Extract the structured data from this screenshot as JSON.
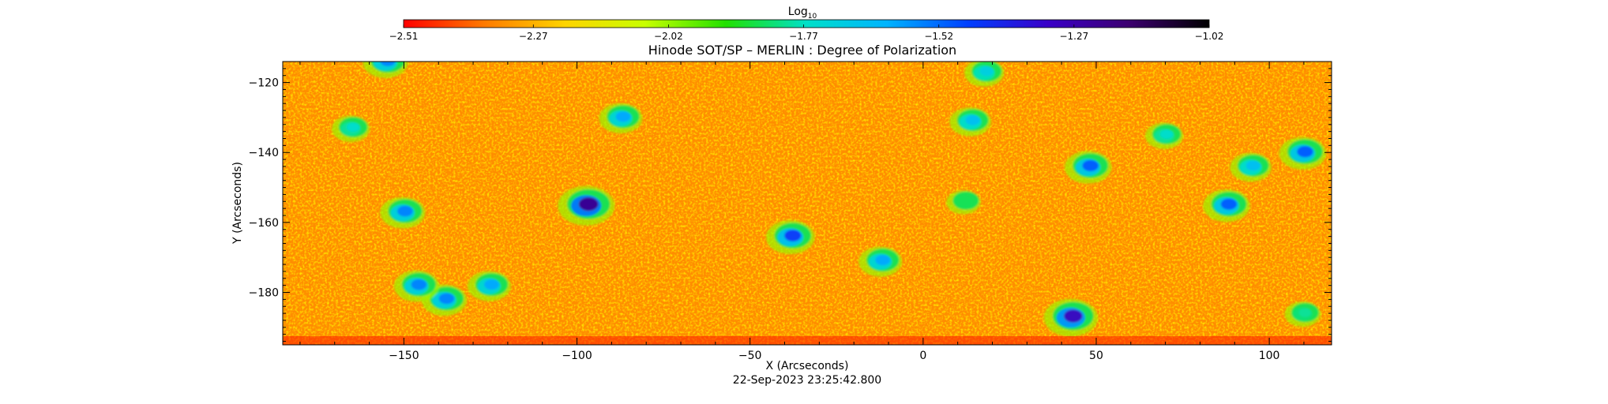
{
  "chart_data": {
    "type": "heatmap",
    "title": "Hinode SOT/SP – MERLIN : Degree of Polarization",
    "xlabel": "X (Arcseconds)",
    "ylabel": "Y (Arcseconds)",
    "timestamp": "22-Sep-2023 23:25:42.800",
    "xlim": [
      -185,
      118
    ],
    "ylim": [
      -195,
      -114
    ],
    "x_ticks": [
      -150,
      -100,
      -50,
      0,
      50,
      100
    ],
    "y_ticks": [
      -120,
      -140,
      -160,
      -180
    ],
    "x_tick_labels": [
      "−150",
      "−100",
      "−50",
      "0",
      "50",
      "100"
    ],
    "y_tick_labels": [
      "−120",
      "−140",
      "−160",
      "−180"
    ],
    "colorbar": {
      "label_base": "Log",
      "label_sub": "10",
      "range": [
        -2.51,
        -1.02
      ],
      "ticks": [
        -2.51,
        -2.27,
        -2.02,
        -1.77,
        -1.52,
        -1.27,
        -1.02
      ],
      "tick_labels": [
        "−2.51",
        "−2.27",
        "−2.02",
        "−1.77",
        "−1.52",
        "−1.27",
        "−1.02"
      ],
      "colors": [
        "#ff0000",
        "#ff7a00",
        "#ffd400",
        "#c8ff00",
        "#22e000",
        "#00e0c8",
        "#00b4ff",
        "#0040ff",
        "#3a00c8",
        "#3c0070",
        "#000000"
      ]
    },
    "background_value": -2.33,
    "features": [
      {
        "x": -97,
        "y": -155,
        "value": -1.22
      },
      {
        "x": -38,
        "y": -164,
        "value": -1.45
      },
      {
        "x": 43,
        "y": -187,
        "value": -1.3
      },
      {
        "x": 48,
        "y": -144,
        "value": -1.5
      },
      {
        "x": -150,
        "y": -157,
        "value": -1.55
      },
      {
        "x": -138,
        "y": -182,
        "value": -1.55
      },
      {
        "x": -146,
        "y": -178,
        "value": -1.55
      },
      {
        "x": -125,
        "y": -178,
        "value": -1.6
      },
      {
        "x": -87,
        "y": -130,
        "value": -1.6
      },
      {
        "x": -12,
        "y": -171,
        "value": -1.6
      },
      {
        "x": 14,
        "y": -131,
        "value": -1.65
      },
      {
        "x": 88,
        "y": -155,
        "value": -1.5
      },
      {
        "x": 110,
        "y": -140,
        "value": -1.5
      },
      {
        "x": 95,
        "y": -144,
        "value": -1.65
      },
      {
        "x": -155,
        "y": -114,
        "value": -1.55
      },
      {
        "x": 18,
        "y": -117,
        "value": -1.7
      },
      {
        "x": -165,
        "y": -133,
        "value": -1.75
      },
      {
        "x": 70,
        "y": -135,
        "value": -1.75
      },
      {
        "x": 110,
        "y": -186,
        "value": -1.8
      },
      {
        "x": 12,
        "y": -154,
        "value": -1.85
      }
    ]
  }
}
